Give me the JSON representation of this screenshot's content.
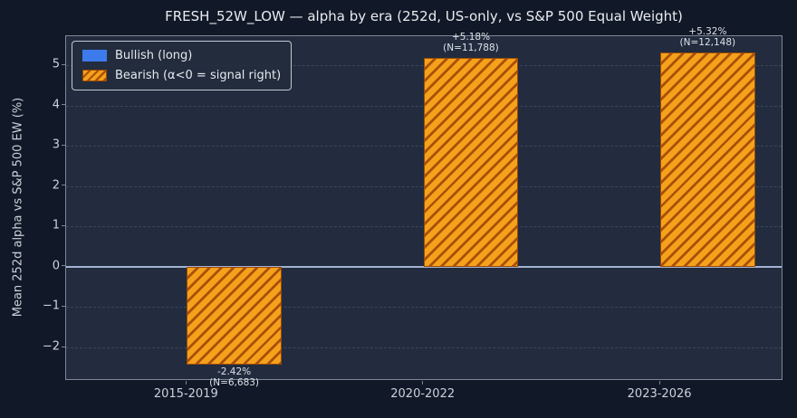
{
  "title": "FRESH_52W_LOW — alpha by era (252d, US-only, vs S&P 500 Equal Weight)",
  "colors": {
    "figure_bg": "#111827",
    "axes_bg": "#222c3e",
    "spine": "#7d8795",
    "grid": "#3a4658",
    "zero_line": "#a4b2d2",
    "tick_text": "#ccd2da",
    "title_text": "#e9ecf0",
    "anno_text": "#dde1e8",
    "bullish": "#3d7bec",
    "bar_fill": "#f6a11b",
    "bar_hatch": "#a85107",
    "bar_edge": "#9c4a06",
    "legend_border": "#c3c9d2",
    "legend_text": "#e6e9ee"
  },
  "legend": {
    "items": [
      {
        "label": "Bullish (long)",
        "swatch": "solid-blue"
      },
      {
        "label": "Bearish (α<0 = signal right)",
        "swatch": "hatched-orange"
      }
    ]
  },
  "chart_data": {
    "type": "bar",
    "title": "FRESH_52W_LOW — alpha by era (252d, US-only, vs S&P 500 Equal Weight)",
    "xlabel": "",
    "ylabel": "Mean 252d alpha vs S&P 500 EW (%)",
    "categories": [
      "2015-2019",
      "2020-2022",
      "2023-2026"
    ],
    "series": [
      {
        "name": "Bullish (long)",
        "values": [
          0,
          0,
          0
        ]
      },
      {
        "name": "Bearish (α<0 = signal right)",
        "values": [
          -2.42,
          5.18,
          5.32
        ],
        "sample_sizes": [
          6683,
          11788,
          12148
        ]
      }
    ],
    "bar_labels": [
      {
        "line1": "-2.42%",
        "line2": "(N=6,683)",
        "placement": "below"
      },
      {
        "line1": "+5.18%",
        "line2": "(N=11,788)",
        "placement": "above"
      },
      {
        "line1": "+5.32%",
        "line2": "(N=12,148)",
        "placement": "above"
      }
    ],
    "yticks": [
      {
        "value": 5,
        "label": "5"
      },
      {
        "value": 4,
        "label": "4"
      },
      {
        "value": 3,
        "label": "3"
      },
      {
        "value": 2,
        "label": "2"
      },
      {
        "value": 1,
        "label": "1"
      },
      {
        "value": 0,
        "label": "0"
      },
      {
        "value": -1,
        "label": "−1"
      },
      {
        "value": -2,
        "label": "−2"
      }
    ],
    "ylim": [
      -2.83,
      5.72
    ],
    "xlim": [
      -0.51,
      2.52
    ],
    "bar_width": 0.4,
    "bar_offset": 0.2,
    "hatch": "///",
    "grid": "horizontal-dashed",
    "zero_line": true,
    "legend_position": "upper-left"
  }
}
